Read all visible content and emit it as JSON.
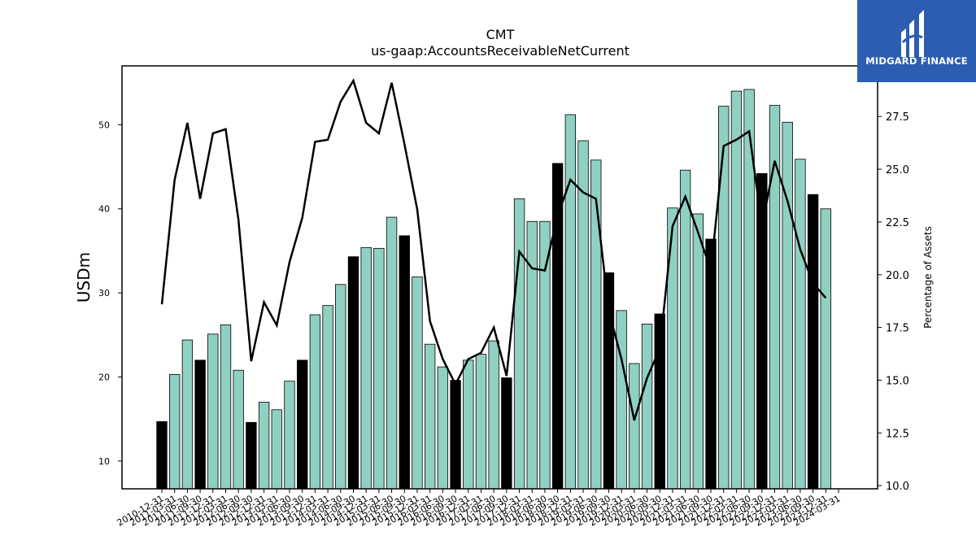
{
  "title": "CMT",
  "subtitle": "us-gaap:AccountsReceivableNetCurrent",
  "logo": {
    "text": "MIDGARD FINANCE"
  },
  "colors": {
    "bar": "#8fd0c2",
    "bar_highlight": "#000000",
    "line": "#000000",
    "background": "#ffffff",
    "logo_bg": "#2d5db0"
  },
  "chart_data": {
    "type": "bar",
    "title": "CMT",
    "subtitle": "us-gaap:AccountsReceivableNetCurrent",
    "ylabel": "USDm",
    "y2label": "Percentage of Assets",
    "ylim": [
      6.7,
      57.0
    ],
    "y2lim": [
      9.85,
      29.9
    ],
    "yticks": [
      10,
      20,
      30,
      40,
      50
    ],
    "y2ticks": [
      10.0,
      12.5,
      15.0,
      17.5,
      20.0,
      22.5,
      25.0,
      27.5
    ],
    "categories": [
      "2010-12-31",
      "2011-03-31",
      "2011-06-30",
      "2011-09-30",
      "2011-12-31",
      "2012-03-31",
      "2012-06-30",
      "2012-09-30",
      "2012-12-31",
      "2013-03-31",
      "2013-06-30",
      "2013-09-30",
      "2013-12-31",
      "2014-03-31",
      "2014-06-30",
      "2014-09-30",
      "2014-12-31",
      "2015-03-31",
      "2015-06-30",
      "2015-09-30",
      "2015-12-31",
      "2016-03-31",
      "2016-06-30",
      "2016-09-30",
      "2016-12-31",
      "2017-03-31",
      "2017-06-30",
      "2017-09-30",
      "2017-12-31",
      "2018-03-31",
      "2018-06-30",
      "2018-09-30",
      "2018-12-31",
      "2019-03-31",
      "2019-06-30",
      "2019-09-30",
      "2019-12-31",
      "2020-03-31",
      "2020-06-30",
      "2020-09-30",
      "2020-12-31",
      "2021-03-31",
      "2021-06-30",
      "2021-09-30",
      "2021-12-31",
      "2022-03-31",
      "2022-06-30",
      "2022-09-30",
      "2022-12-31",
      "2023-03-31",
      "2023-06-30",
      "2023-09-30",
      "2023-12-31",
      "2024-03-31"
    ],
    "tick_labels": [
      "2010-12-31",
      "2011-03-31",
      "2011-06-30",
      "2011-09-30",
      "2011-12-31",
      "2012-03-31",
      "2012-06-30",
      "2012-09-30",
      "2012-12-31",
      "2013-03-31",
      "2013-06-30",
      "2013-09-30",
      "2013-12-31",
      "2014-03-31",
      "2014-06-30",
      "2014-09-30",
      "2014-12-31",
      "2015-03-31",
      "2015-06-30",
      "2015-09-30",
      "2015-12-31",
      "2016-03-31",
      "2016-06-30",
      "2016-09-30",
      "2016-12-31",
      "2017-03-31",
      "2017-06-30",
      "2017-09-30",
      "2017-12-31",
      "2018-03-31",
      "2018-06-30",
      "2018-09-30",
      "2018-12-31",
      "2019-03-31",
      "2019-06-30",
      "2019-09-30",
      "2019-12-31",
      "2020-03-31",
      "2020-06-30",
      "2020-09-30",
      "2020-12-31",
      "2021-03-31",
      "2021-06-30",
      "2021-09-30",
      "2021-12-31",
      "2022-03-31",
      "2022-06-30",
      "2022-09-30",
      "2022-12-31",
      "2023-03-31",
      "2023-06-30",
      "2023-09-30",
      "2023-12-31",
      "2024-03-31"
    ],
    "values": [
      14.7,
      20.3,
      24.4,
      22.0,
      25.1,
      26.2,
      20.8,
      14.6,
      17.0,
      16.1,
      19.5,
      22.0,
      27.4,
      28.5,
      31.0,
      34.3,
      35.4,
      35.3,
      39.0,
      36.8,
      31.9,
      23.9,
      21.2,
      19.6,
      22.0,
      22.7,
      24.3,
      19.9,
      41.2,
      38.5,
      38.5,
      45.4,
      51.2,
      48.1,
      45.8,
      32.4,
      27.9,
      21.6,
      26.3,
      27.5,
      40.1,
      44.6,
      39.4,
      36.4,
      52.2,
      54.0,
      54.2,
      44.2,
      52.3,
      50.3,
      45.9,
      41.7,
      40.0,
      null
    ],
    "highlight": [
      true,
      false,
      false,
      true,
      false,
      false,
      false,
      true,
      false,
      false,
      false,
      true,
      false,
      false,
      false,
      true,
      false,
      false,
      false,
      true,
      false,
      false,
      false,
      true,
      false,
      false,
      false,
      true,
      false,
      false,
      false,
      true,
      false,
      false,
      false,
      true,
      false,
      false,
      false,
      true,
      false,
      false,
      false,
      true,
      false,
      false,
      false,
      true,
      false,
      false,
      false,
      true,
      false,
      false
    ],
    "line_values": [
      18.6,
      24.5,
      27.2,
      23.6,
      26.7,
      26.9,
      22.6,
      15.9,
      18.7,
      17.6,
      20.6,
      22.7,
      26.3,
      26.4,
      28.2,
      29.2,
      27.2,
      26.7,
      29.1,
      26.2,
      23.1,
      17.8,
      16.0,
      14.8,
      16.0,
      16.3,
      17.5,
      15.2,
      21.1,
      20.3,
      20.2,
      22.8,
      24.5,
      23.9,
      23.6,
      18.3,
      16.0,
      13.1,
      15.1,
      16.5,
      22.3,
      23.7,
      22.0,
      20.2,
      26.1,
      26.4,
      26.8,
      22.3,
      25.4,
      23.5,
      21.2,
      19.6,
      18.9,
      null
    ],
    "grid": false,
    "legend": "none"
  }
}
